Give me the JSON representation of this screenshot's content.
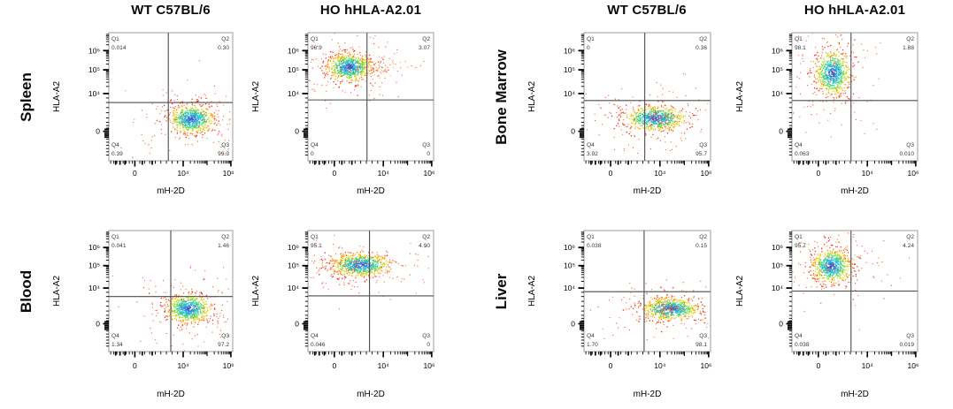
{
  "figure": {
    "description": "Flow cytometry dot plots of HLA-A2 versus mH-2D expression in four tissues of WT C57BL/6 and HO hHLA-A2.01 mice"
  },
  "column_titles": [
    "WT C57BL/6",
    "HO hHLA-A2.01",
    "WT C57BL/6",
    "HO hHLA-A2.01"
  ],
  "tissues": [
    "Spleen",
    "Bone Marrow",
    "Blood",
    "Liver"
  ],
  "chart_data": {
    "type": "scatter",
    "subtype": "flow-cytometry-density-dot-plot",
    "grid": false,
    "xlabel": "mH-2D",
    "ylabel": "HLA-A2",
    "x_scale": "biexponential",
    "y_scale": "biexponential",
    "x_ticks": [
      "0",
      "10⁴",
      "10⁶"
    ],
    "y_ticks": [
      "10⁶",
      "10⁵",
      "10⁴",
      "0"
    ],
    "quadrant_names": [
      "Q1",
      "Q2",
      "Q3",
      "Q4"
    ],
    "density_colormap": [
      "#2b3fbf",
      "#2f7fe0",
      "#22c3dd",
      "#2fd49a",
      "#8ee22a",
      "#ffd400",
      "#ff7e00",
      "#ff1500"
    ],
    "panels": [
      {
        "tissue": "Spleen",
        "genotype": "WT C57BL/6",
        "dominant_quadrant": "Q3",
        "quadrants": {
          "Q1": "0.014",
          "Q2": "0.30",
          "Q3": "99.3",
          "Q4": "0.39"
        },
        "gates": {
          "x_frac": 0.48,
          "y_frac": 0.545
        },
        "cluster": {
          "cx": 0.67,
          "cy": 0.675,
          "rx": 0.155,
          "ry": 0.095,
          "tail": 0.0,
          "approx_x": "~1×10⁴",
          "approx_y": "~3×10²"
        }
      },
      {
        "tissue": "Spleen",
        "genotype": "HO hHLA-A2.01",
        "dominant_quadrant": "Q1",
        "quadrants": {
          "Q1": "96.9",
          "Q2": "3.07",
          "Q3": "0",
          "Q4": "0"
        },
        "gates": {
          "x_frac": 0.47,
          "y_frac": 0.525
        },
        "cluster": {
          "cx": 0.33,
          "cy": 0.27,
          "rx": 0.15,
          "ry": 0.09,
          "tail": 0.42,
          "approx_x": "~6×10²",
          "approx_y": "~1.2×10⁵"
        }
      },
      {
        "tissue": "Bone Marrow",
        "genotype": "WT C57BL/6",
        "dominant_quadrant": "Q3",
        "quadrants": {
          "Q1": "0",
          "Q2": "0.36",
          "Q3": "95.7",
          "Q4": "3.92"
        },
        "gates": {
          "x_frac": 0.48,
          "y_frac": 0.53
        },
        "cluster": {
          "cx": 0.565,
          "cy": 0.67,
          "rx": 0.21,
          "ry": 0.082,
          "tail": 0.1,
          "approx_x": "~8×10³",
          "approx_y": "~3×10²"
        }
      },
      {
        "tissue": "Bone Marrow",
        "genotype": "HO hHLA-A2.01",
        "dominant_quadrant": "Q1",
        "quadrants": {
          "Q1": "98.1",
          "Q2": "1.88",
          "Q3": "0.010",
          "Q4": "0.063"
        },
        "gates": {
          "x_frac": 0.47,
          "y_frac": 0.53
        },
        "cluster": {
          "cx": 0.325,
          "cy": 0.315,
          "rx": 0.115,
          "ry": 0.15,
          "tail": 0.0,
          "approx_x": "~6×10²",
          "approx_y": "~8×10⁴"
        }
      },
      {
        "tissue": "Blood",
        "genotype": "WT C57BL/6",
        "dominant_quadrant": "Q3",
        "quadrants": {
          "Q1": "0.041",
          "Q2": "1.46",
          "Q3": "97.2",
          "Q4": "1.34"
        },
        "gates": {
          "x_frac": 0.5,
          "y_frac": 0.545
        },
        "cluster": {
          "cx": 0.645,
          "cy": 0.645,
          "rx": 0.15,
          "ry": 0.1,
          "tail": 0.0,
          "approx_x": "~1.2×10⁴",
          "approx_y": "~4×10²"
        }
      },
      {
        "tissue": "Blood",
        "genotype": "HO hHLA-A2.01",
        "dominant_quadrant": "Q1",
        "quadrants": {
          "Q1": "95.1",
          "Q2": "4.90",
          "Q3": "0",
          "Q4": "0.046"
        },
        "gates": {
          "x_frac": 0.49,
          "y_frac": 0.54
        },
        "cluster": {
          "cx": 0.42,
          "cy": 0.285,
          "rx": 0.2,
          "ry": 0.08,
          "tail": -0.32,
          "approx_x": "~2×10³",
          "approx_y": "~1×10⁵"
        }
      },
      {
        "tissue": "Liver",
        "genotype": "WT C57BL/6",
        "dominant_quadrant": "Q3",
        "quadrants": {
          "Q1": "0.038",
          "Q2": "0.15",
          "Q3": "98.1",
          "Q4": "1.70"
        },
        "gates": {
          "x_frac": 0.475,
          "y_frac": 0.505
        },
        "cluster": {
          "cx": 0.685,
          "cy": 0.65,
          "rx": 0.19,
          "ry": 0.08,
          "tail": -0.12,
          "approx_x": "~2×10⁴",
          "approx_y": "~4×10²"
        }
      },
      {
        "tissue": "Liver",
        "genotype": "HO hHLA-A2.01",
        "dominant_quadrant": "Q1",
        "quadrants": {
          "Q1": "95.7",
          "Q2": "4.24",
          "Q3": "0.019",
          "Q4": "0.038"
        },
        "gates": {
          "x_frac": 0.47,
          "y_frac": 0.5
        },
        "cluster": {
          "cx": 0.315,
          "cy": 0.295,
          "rx": 0.13,
          "ry": 0.12,
          "tail": 0.0,
          "approx_x": "~5×10²",
          "approx_y": "~1×10⁵"
        }
      }
    ]
  }
}
